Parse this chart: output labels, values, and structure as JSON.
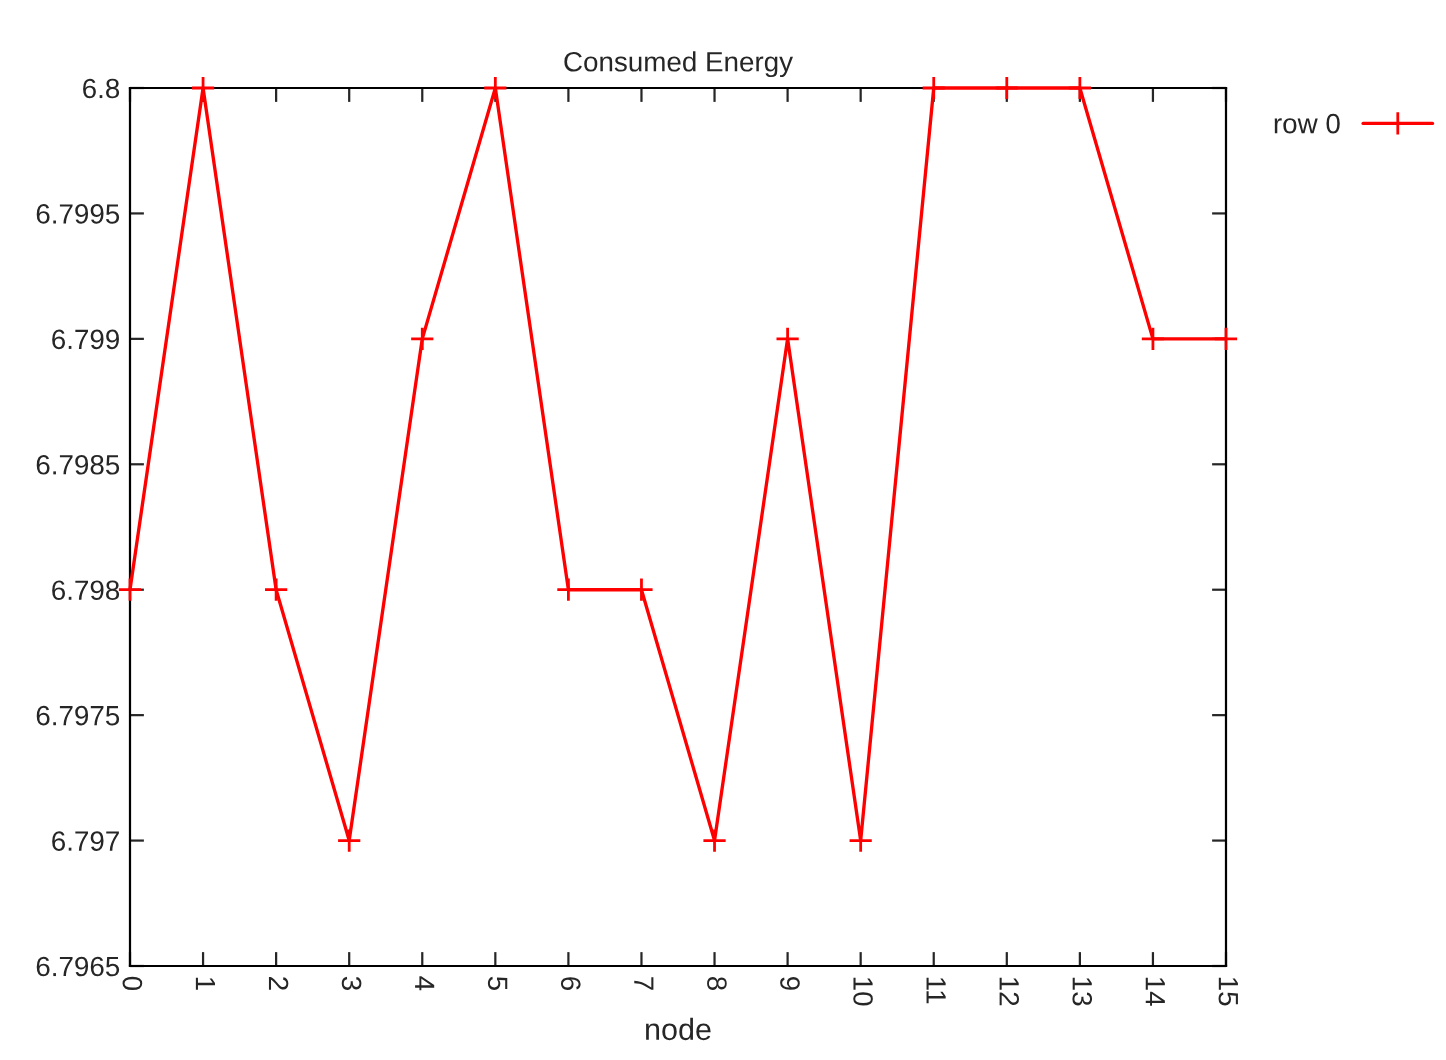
{
  "chart_data": {
    "type": "line",
    "title": "Consumed Energy",
    "xlabel": "node",
    "x": [
      0,
      1,
      2,
      3,
      4,
      5,
      6,
      7,
      8,
      9,
      10,
      11,
      12,
      13,
      14,
      15
    ],
    "series": [
      {
        "name": "row 0",
        "color": "#ff0000",
        "values": [
          6.798,
          6.8,
          6.798,
          6.797,
          6.799,
          6.8,
          6.798,
          6.798,
          6.797,
          6.799,
          6.797,
          6.8,
          6.8,
          6.8,
          6.799,
          6.799
        ]
      }
    ],
    "xlim": [
      0,
      15
    ],
    "xticks": [
      0,
      1,
      2,
      3,
      4,
      5,
      6,
      7,
      8,
      9,
      10,
      11,
      12,
      13,
      14,
      15
    ],
    "ylim": [
      6.7965,
      6.8
    ],
    "yticks": [
      6.7965,
      6.797,
      6.7975,
      6.798,
      6.7985,
      6.799,
      6.7995,
      6.8
    ],
    "grid": false,
    "legend": "top right",
    "marker": "cross",
    "line_style": "solid"
  }
}
